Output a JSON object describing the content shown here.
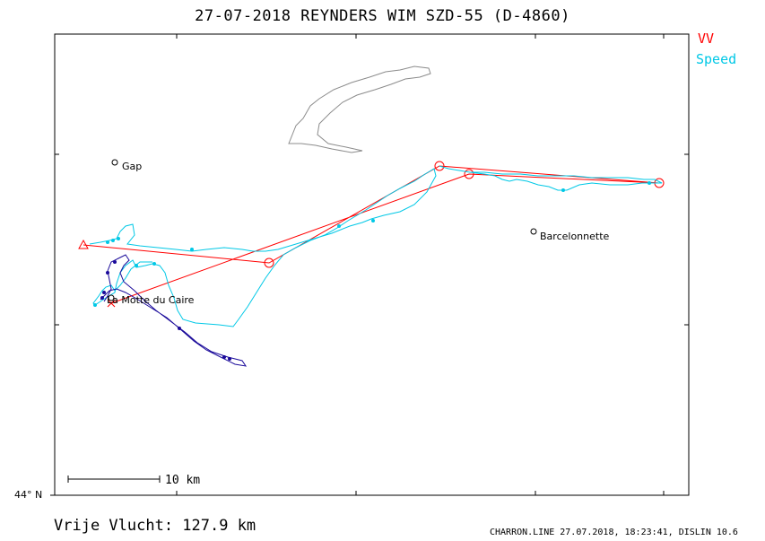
{
  "header": {
    "title": "27-07-2018   REYNDERS WIM   SZD-55 (D-4860)"
  },
  "legend": [
    {
      "label": "VV",
      "color": "#ff0000"
    },
    {
      "label": "Speed",
      "color": "#00c8e6"
    }
  ],
  "axes": {
    "lat_label": "44° N"
  },
  "scale_bar": {
    "label": "10 km"
  },
  "places": [
    {
      "name": "Gap"
    },
    {
      "name": "Barcelonnette"
    },
    {
      "name": "La Motte du Caire"
    }
  ],
  "footer": {
    "distance": "Vrije Vlucht:  127.9 km",
    "info": "CHARRON.LINE 27.07.2018, 18:23:41, DISLIN 10.6"
  },
  "colors": {
    "task": "#ff0000",
    "track_speed": "#00c8e6",
    "track_low": "#1a0a9a",
    "lake": "#8c8c8c",
    "frame": "#000000"
  }
}
